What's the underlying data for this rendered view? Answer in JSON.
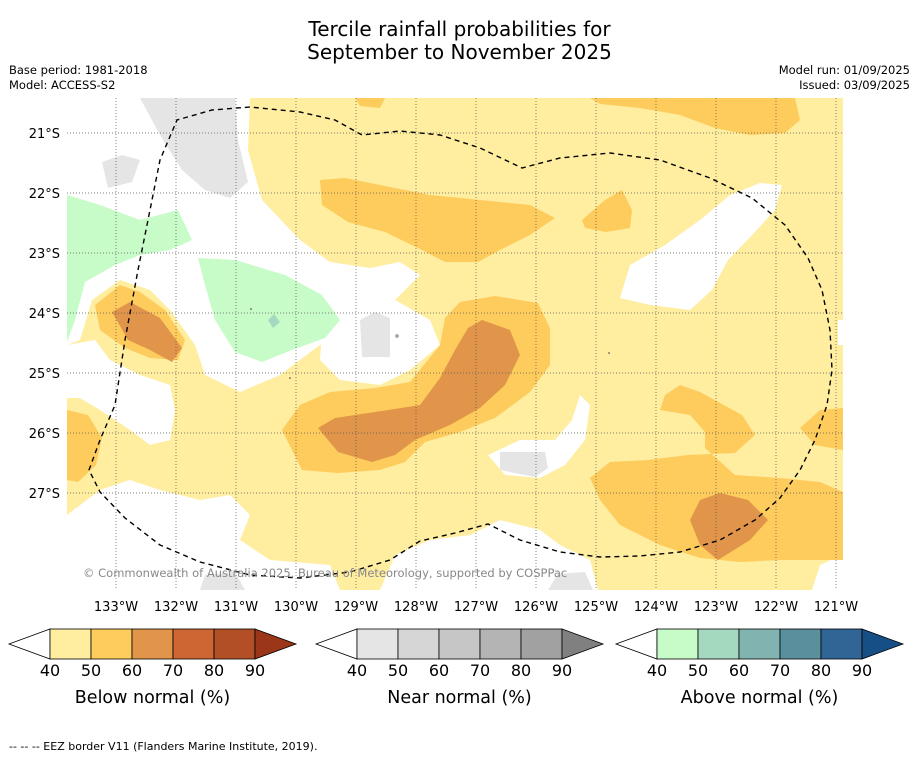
{
  "title_line1": "Tercile rainfall probabilities for",
  "title_line2": "September to November 2025",
  "meta_left": [
    "Base period: 1981-2018",
    "Model: ACCESS-S2"
  ],
  "meta_right": [
    "Model run: 01/09/2025",
    "Issued: 03/09/2025"
  ],
  "copyright": "© Commonwealth of Australia 2025, Bureau of Meteorology, supported by COSPPac",
  "lon_labels": [
    "133°W",
    "132°W",
    "131°W",
    "130°W",
    "129°W",
    "128°W",
    "127°W",
    "126°W",
    "125°W",
    "124°W",
    "123°W",
    "122°W",
    "121°W"
  ],
  "lat_labels": [
    "21°S",
    "22°S",
    "23°S",
    "24°S",
    "25°S",
    "26°S",
    "27°S"
  ],
  "colorbars": [
    {
      "label": "Below normal (%)",
      "ticks": [
        "40",
        "50",
        "60",
        "70",
        "80",
        "90"
      ],
      "colors": [
        "#ffeda0",
        "#fecc5c",
        "#e0954a",
        "#cd6633",
        "#b24f26"
      ],
      "tip": "#9c3619"
    },
    {
      "label": "Near normal (%)",
      "ticks": [
        "40",
        "50",
        "60",
        "70",
        "80",
        "90"
      ],
      "colors": [
        "#e5e5e5",
        "#d6d6d6",
        "#c6c6c6",
        "#b4b4b4",
        "#a1a1a1"
      ],
      "tip": "#808080"
    },
    {
      "label": "Above normal (%)",
      "ticks": [
        "40",
        "50",
        "60",
        "70",
        "80",
        "90"
      ],
      "colors": [
        "#c7fbc7",
        "#a4d8bf",
        "#81b4b0",
        "#5a8f9d",
        "#316596"
      ],
      "tip": "#164f86"
    }
  ],
  "footer": "--  --  -- EEZ border V11 (Flanders Marine Institute, 2019).",
  "colors": {
    "below_40": "#ffeda0",
    "below_50": "#fecc5c",
    "below_60": "#e0954a",
    "near_40": "#e5e5e5",
    "above_40": "#c7fbc7",
    "above_50": "#a4d8bf"
  }
}
